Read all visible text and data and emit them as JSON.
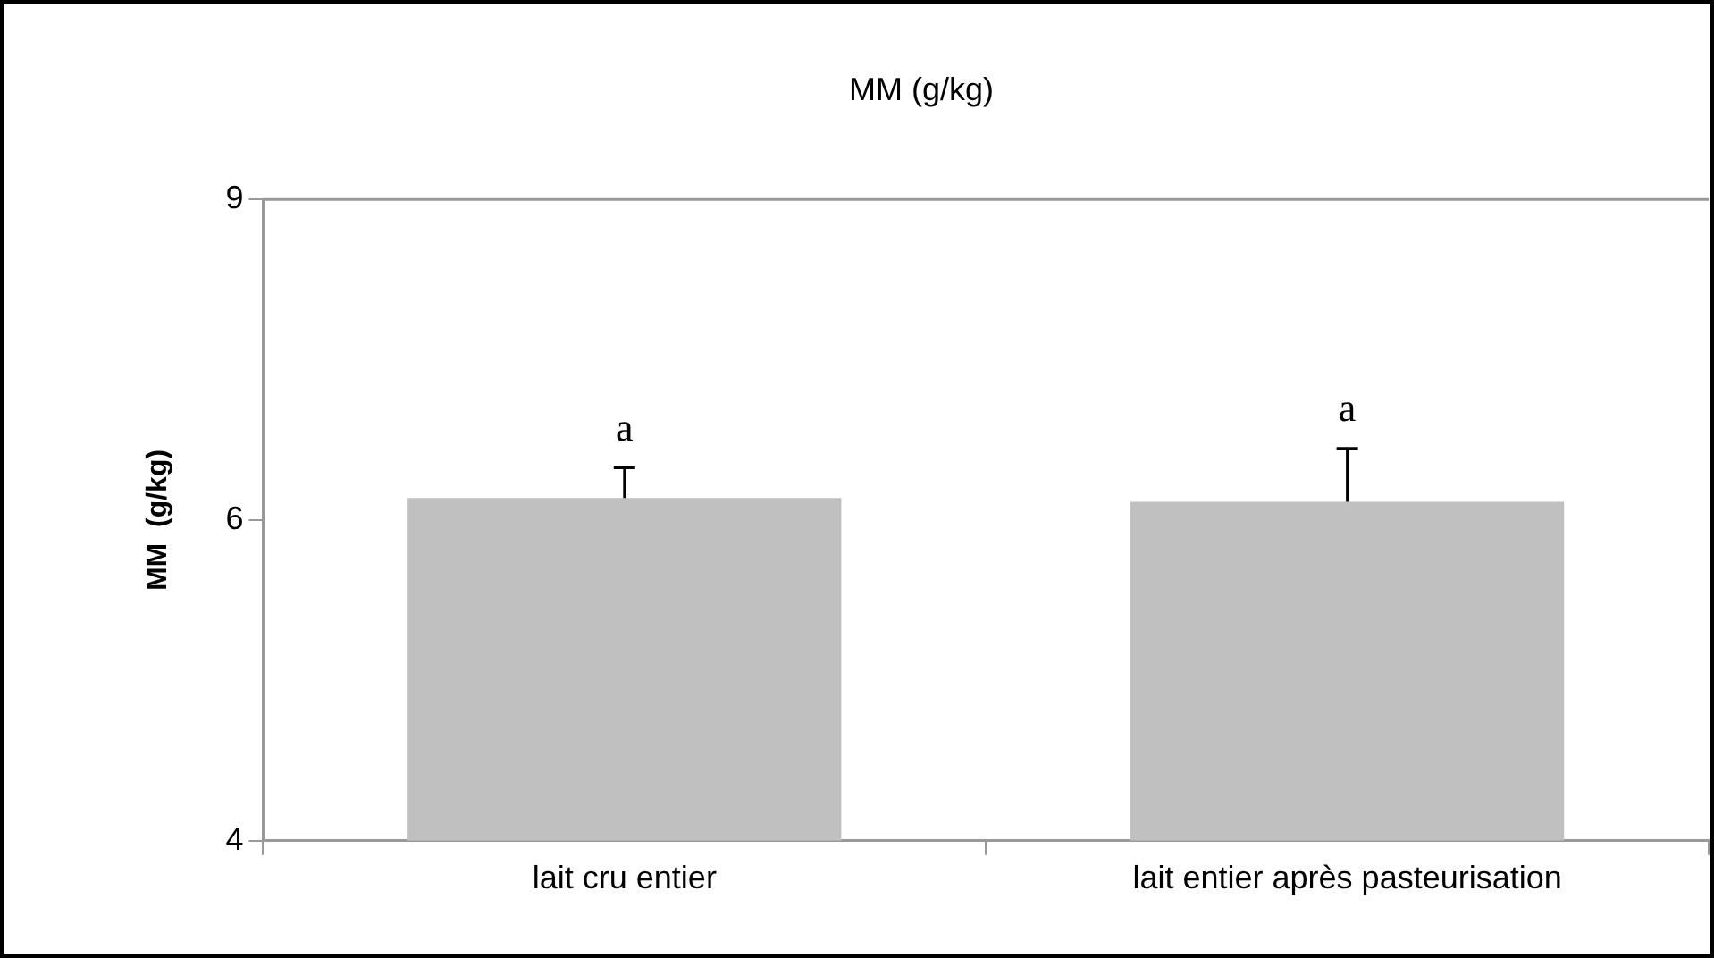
{
  "chart_data": {
    "type": "bar",
    "title": "MM (g/kg)",
    "ylabel": "MM  (g/kg)",
    "categories": [
      "lait cru entier",
      "lait entier après pasteurisation"
    ],
    "values": [
      6.17,
      6.14
    ],
    "color": "#c0c0c0",
    "errors": [
      [
        6.17,
        6.41
      ],
      [
        6.14,
        6.57
      ]
    ],
    "log": true,
    "ylim": [
      4,
      9
    ],
    "yticks": [
      4,
      6,
      9
    ],
    "grid": false,
    "legend": false,
    "annotations": [
      "a",
      "a"
    ]
  }
}
